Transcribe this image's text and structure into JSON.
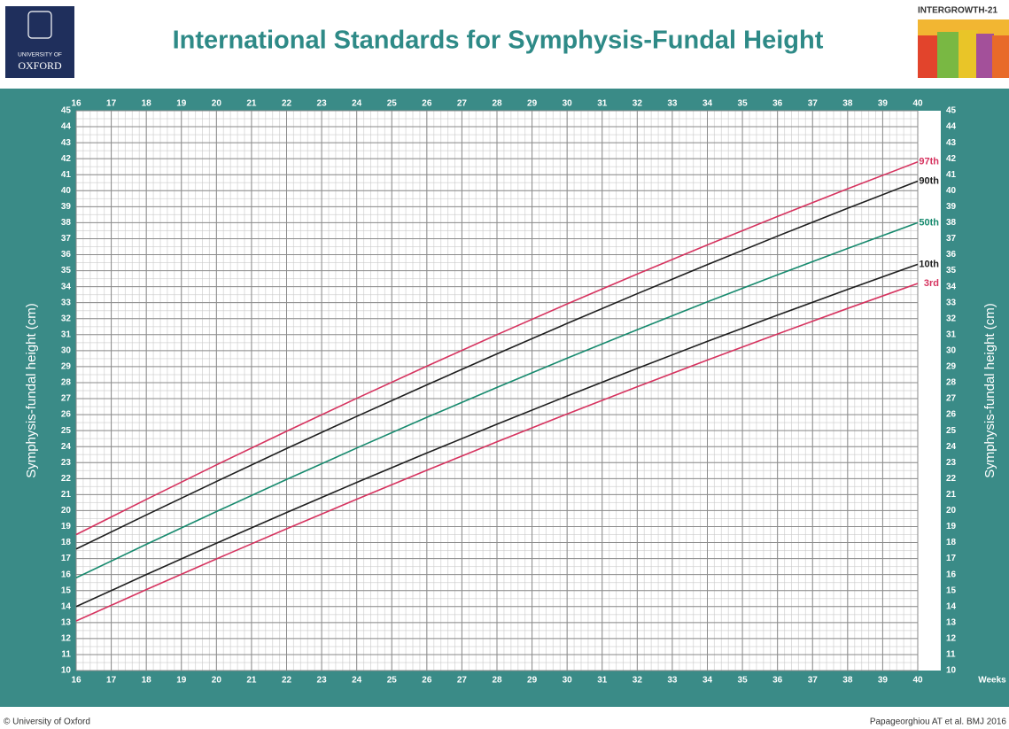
{
  "header": {
    "logo_top": "UNIVERSITY OF",
    "logo_bottom": "OXFORD",
    "brand": "INTERGROWTH-21"
  },
  "chart_data": {
    "type": "line",
    "title": "International Standards for Symphysis-Fundal Height",
    "xlabel": "Weeks",
    "ylabel": "Symphysis-fundal height (cm)",
    "copyright": "© University of Oxford",
    "source": "Papageorghiou AT et al. BMJ 2016",
    "x": [
      16,
      18,
      20,
      22,
      24,
      26,
      28,
      30,
      32,
      34,
      36,
      38,
      40
    ],
    "series": [
      {
        "name": "97th",
        "color": "#d6335f",
        "values": [
          18.5,
          20.7,
          22.86,
          24.96,
          27.02,
          29.03,
          31.0,
          32.92,
          34.79,
          36.61,
          38.39,
          40.12,
          41.8
        ]
      },
      {
        "name": "90th",
        "color": "#1e1e1e",
        "values": [
          17.6,
          19.73,
          21.82,
          23.88,
          25.89,
          27.86,
          29.8,
          31.7,
          33.56,
          35.38,
          37.16,
          38.9,
          40.6
        ]
      },
      {
        "name": "50th",
        "color": "#178a6e",
        "values": [
          15.8,
          17.89,
          19.94,
          21.95,
          23.91,
          25.83,
          27.7,
          29.53,
          31.31,
          33.05,
          34.74,
          36.39,
          38.0
        ]
      },
      {
        "name": "10th",
        "color": "#1e1e1e",
        "values": [
          14.0,
          16.0,
          17.96,
          19.88,
          21.76,
          23.6,
          25.4,
          27.16,
          28.89,
          30.58,
          32.22,
          33.83,
          35.4
        ]
      },
      {
        "name": "3rd",
        "color": "#d6335f",
        "values": [
          13.1,
          15.06,
          16.98,
          18.86,
          20.71,
          22.52,
          24.3,
          26.04,
          27.74,
          29.41,
          31.04,
          32.64,
          34.2
        ]
      }
    ],
    "xlim": [
      16,
      40
    ],
    "xticks": [
      16,
      17,
      18,
      19,
      20,
      21,
      22,
      23,
      24,
      25,
      26,
      27,
      28,
      29,
      30,
      31,
      32,
      33,
      34,
      35,
      36,
      37,
      38,
      39,
      40
    ],
    "ylim": [
      10,
      45
    ],
    "yticks": [
      10,
      11,
      12,
      13,
      14,
      15,
      16,
      17,
      18,
      19,
      20,
      21,
      22,
      23,
      24,
      25,
      26,
      27,
      28,
      29,
      30,
      31,
      32,
      33,
      34,
      35,
      36,
      37,
      38,
      39,
      40,
      41,
      42,
      43,
      44,
      45
    ],
    "grid": true
  }
}
